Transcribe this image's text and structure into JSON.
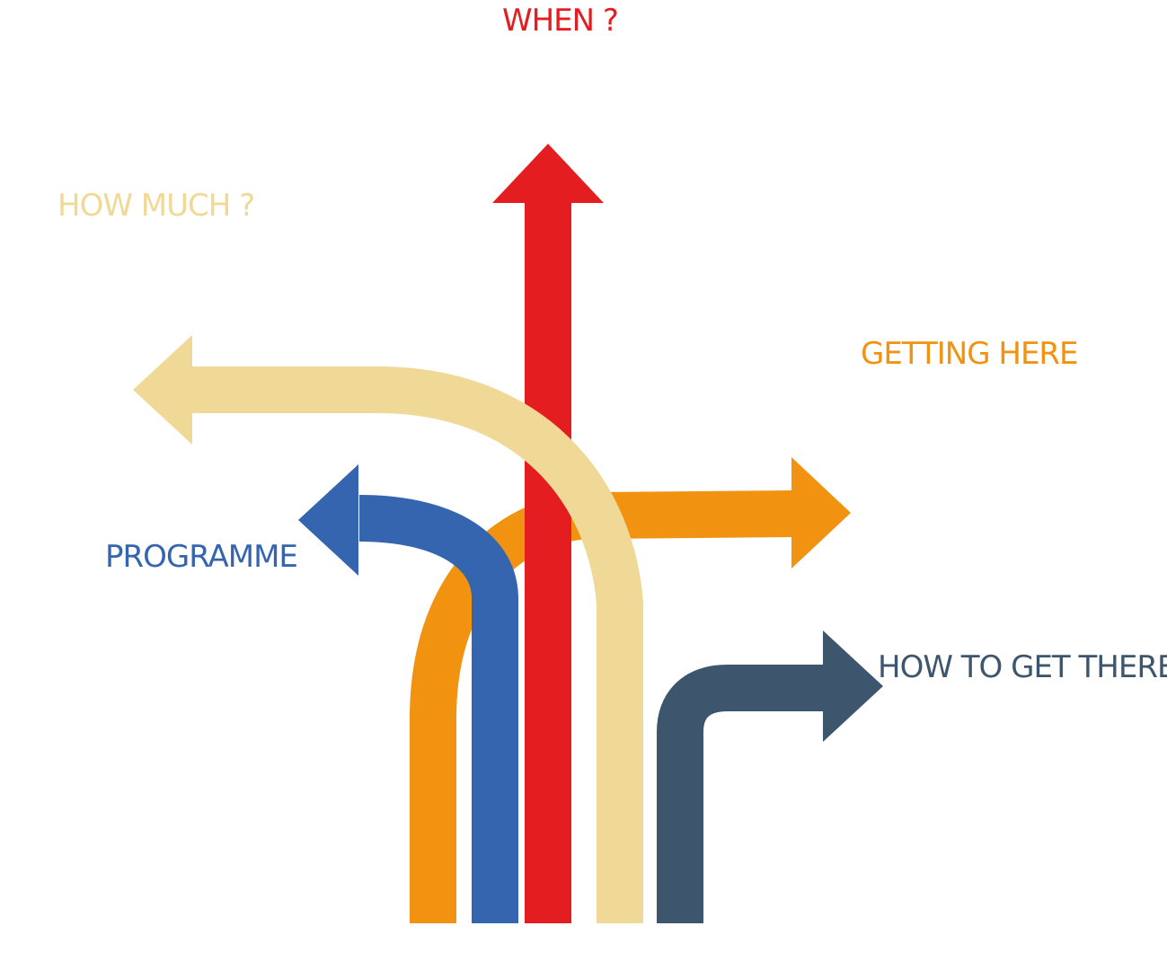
{
  "colors": {
    "red": "#e41e20",
    "cream": "#f0d996",
    "orange": "#f19210",
    "blue": "#3465ae",
    "slate": "#3d566d",
    "background": "#ffffff"
  },
  "labels": {
    "when": {
      "text": "WHEN ?",
      "color": "#e41e20"
    },
    "how_much": {
      "text": "HOW MUCH ?",
      "color": "#f0d996"
    },
    "getting_here": {
      "text": "GETTING HERE",
      "color": "#f19210"
    },
    "programme": {
      "text": "PROGRAMME",
      "color": "#3465ae"
    },
    "how_to_get_there": {
      "text": "HOW TO GET THERE",
      "color": "#3d566d"
    }
  }
}
